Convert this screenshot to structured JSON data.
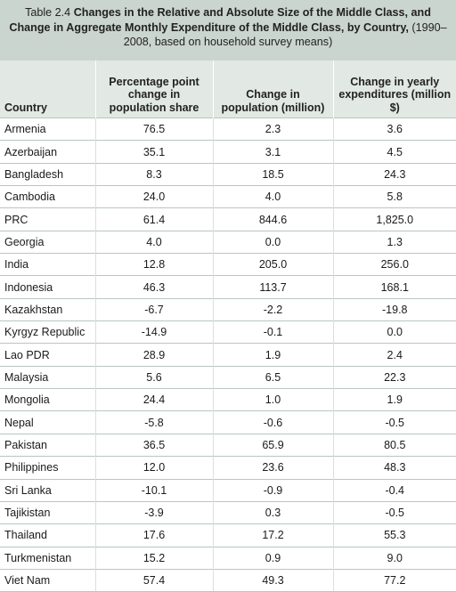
{
  "title": {
    "label": "Table 2.4",
    "text": "Changes in the Relative and Absolute Size of the Middle Class, and Change in Aggregate Monthly Expenditure of the Middle Class, by Country,",
    "note": "(1990–2008, based on household survey means)"
  },
  "columns": [
    "Country",
    "Percentage point change in population share",
    "Change in population (million)",
    "Change in yearly expenditures (million $)"
  ],
  "rows": [
    [
      "Armenia",
      "76.5",
      "2.3",
      "3.6"
    ],
    [
      "Azerbaijan",
      "35.1",
      "3.1",
      "4.5"
    ],
    [
      "Bangladesh",
      "8.3",
      "18.5",
      "24.3"
    ],
    [
      "Cambodia",
      "24.0",
      "4.0",
      "5.8"
    ],
    [
      "PRC",
      "61.4",
      "844.6",
      "1,825.0"
    ],
    [
      "Georgia",
      "4.0",
      "0.0",
      "1.3"
    ],
    [
      "India",
      "12.8",
      "205.0",
      "256.0"
    ],
    [
      "Indonesia",
      "46.3",
      "113.7",
      "168.1"
    ],
    [
      "Kazakhstan",
      "-6.7",
      "-2.2",
      "-19.8"
    ],
    [
      "Kyrgyz Republic",
      "-14.9",
      "-0.1",
      "0.0"
    ],
    [
      "Lao PDR",
      "28.9",
      "1.9",
      "2.4"
    ],
    [
      "Malaysia",
      "5.6",
      "6.5",
      "22.3"
    ],
    [
      "Mongolia",
      "24.4",
      "1.0",
      "1.9"
    ],
    [
      "Nepal",
      "-5.8",
      "-0.6",
      "-0.5"
    ],
    [
      "Pakistan",
      "36.5",
      "65.9",
      "80.5"
    ],
    [
      "Philippines",
      "12.0",
      "23.6",
      "48.3"
    ],
    [
      "Sri Lanka",
      "-10.1",
      "-0.9",
      "-0.4"
    ],
    [
      "Tajikistan",
      "-3.9",
      "0.3",
      "-0.5"
    ],
    [
      "Thailand",
      "17.6",
      "17.2",
      "55.3"
    ],
    [
      "Turkmenistan",
      "15.2",
      "0.9",
      "9.0"
    ],
    [
      "Viet Nam",
      "57.4",
      "49.3",
      "77.2"
    ]
  ]
}
